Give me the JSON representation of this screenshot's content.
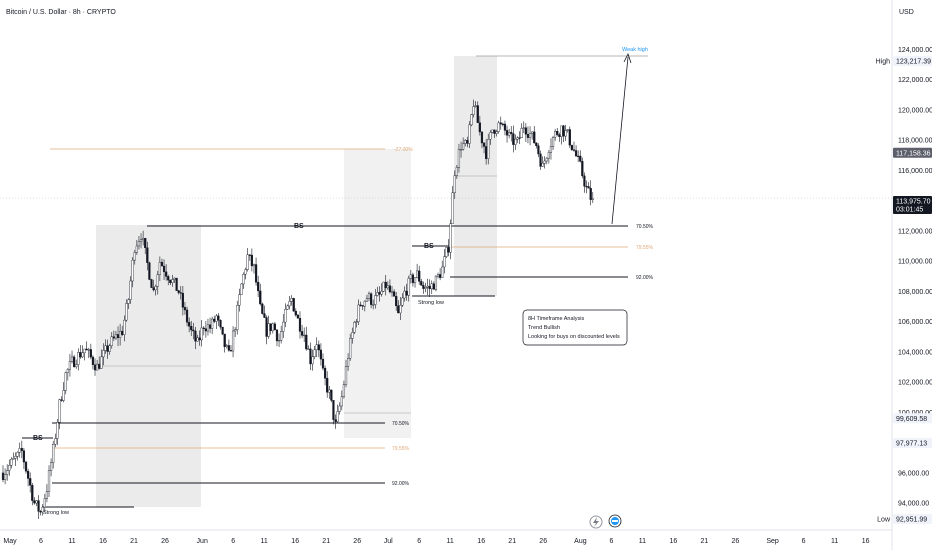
{
  "header": {
    "title": "Bitcoin / U.S. Dollar · 8h · CRYPTO",
    "currency": "USD"
  },
  "chart_data": {
    "type": "candlestick",
    "yaxis_ticks": [
      "124,000.00",
      "122,000.00",
      "120,000.00",
      "118,000.00",
      "116,000.00",
      "112,000.00",
      "110,000.00",
      "108,000.00",
      "106,000.00",
      "104,000.00",
      "102,000.00",
      "100,000.00",
      "96,000.00",
      "94,000.00",
      "90,000.00"
    ],
    "ytick_values": [
      124000,
      122000,
      120000,
      118000,
      116000,
      112000,
      110000,
      108000,
      106000,
      104000,
      102000,
      100000,
      96000,
      94000,
      90000
    ],
    "ylim": [
      91500,
      126200
    ],
    "xaxis_ticks": [
      {
        "label": "May",
        "pos": 0
      },
      {
        "label": "6",
        "pos": 5
      },
      {
        "label": "11",
        "pos": 10
      },
      {
        "label": "16",
        "pos": 15
      },
      {
        "label": "21",
        "pos": 20
      },
      {
        "label": "26",
        "pos": 25
      },
      {
        "label": "Jun",
        "pos": 31
      },
      {
        "label": "6",
        "pos": 36
      },
      {
        "label": "11",
        "pos": 41
      },
      {
        "label": "16",
        "pos": 46
      },
      {
        "label": "21",
        "pos": 51
      },
      {
        "label": "26",
        "pos": 56
      },
      {
        "label": "Jul",
        "pos": 61
      },
      {
        "label": "6",
        "pos": 66
      },
      {
        "label": "11",
        "pos": 71
      },
      {
        "label": "16",
        "pos": 76
      },
      {
        "label": "21",
        "pos": 81
      },
      {
        "label": "26",
        "pos": 86
      },
      {
        "label": "Aug",
        "pos": 92
      },
      {
        "label": "6",
        "pos": 97
      },
      {
        "label": "11",
        "pos": 102
      },
      {
        "label": "16",
        "pos": 107
      },
      {
        "label": "21",
        "pos": 112
      },
      {
        "label": "26",
        "pos": 117
      },
      {
        "label": "Sep",
        "pos": 123
      },
      {
        "label": "6",
        "pos": 128
      },
      {
        "label": "11",
        "pos": 133
      },
      {
        "label": "16",
        "pos": 138
      }
    ],
    "price_tags": [
      {
        "label": "High",
        "value": "123,217.39",
        "y": 123217.39,
        "style": "light"
      },
      {
        "label": "",
        "value": "117,158.36",
        "y": 117158.36,
        "style": "gray"
      },
      {
        "label": "",
        "value": "113,975.70",
        "sub": "03:01:45",
        "y": 113975.7,
        "style": "dark"
      },
      {
        "label": "",
        "value": "99,609.58",
        "y": 99609.58,
        "style": "light"
      },
      {
        "label": "",
        "value": "97,977.13",
        "y": 97977.13,
        "style": "light"
      },
      {
        "label": "Low",
        "value": "92,951.99",
        "y": 92951.99,
        "style": "light"
      }
    ],
    "key_points": [
      {
        "day": 0,
        "price": 96000
      },
      {
        "day": 3,
        "price": 97400
      },
      {
        "day": 5,
        "price": 94000
      },
      {
        "day": 6,
        "price": 93400
      },
      {
        "day": 7,
        "price": 95000
      },
      {
        "day": 8,
        "price": 97500
      },
      {
        "day": 9,
        "price": 100500
      },
      {
        "day": 10,
        "price": 102500
      },
      {
        "day": 11,
        "price": 103300
      },
      {
        "day": 13,
        "price": 104200
      },
      {
        "day": 15,
        "price": 103000
      },
      {
        "day": 17,
        "price": 104500
      },
      {
        "day": 19,
        "price": 105400
      },
      {
        "day": 20,
        "price": 107500
      },
      {
        "day": 21,
        "price": 111000
      },
      {
        "day": 22,
        "price": 111800
      },
      {
        "day": 23,
        "price": 109800
      },
      {
        "day": 24,
        "price": 108000
      },
      {
        "day": 25,
        "price": 110000
      },
      {
        "day": 26,
        "price": 109300
      },
      {
        "day": 28,
        "price": 108000
      },
      {
        "day": 29,
        "price": 106500
      },
      {
        "day": 30,
        "price": 105300
      },
      {
        "day": 31,
        "price": 104500
      },
      {
        "day": 32,
        "price": 105800
      },
      {
        "day": 33,
        "price": 105600
      },
      {
        "day": 34,
        "price": 106300
      },
      {
        "day": 35,
        "price": 104800
      },
      {
        "day": 36,
        "price": 103700
      },
      {
        "day": 37,
        "price": 105800
      },
      {
        "day": 38,
        "price": 108400
      },
      {
        "day": 39,
        "price": 110300
      },
      {
        "day": 40,
        "price": 109500
      },
      {
        "day": 41,
        "price": 106800
      },
      {
        "day": 42,
        "price": 105400
      },
      {
        "day": 43,
        "price": 105800
      },
      {
        "day": 44,
        "price": 104800
      },
      {
        "day": 45,
        "price": 106400
      },
      {
        "day": 46,
        "price": 107500
      },
      {
        "day": 47,
        "price": 106100
      },
      {
        "day": 48,
        "price": 105200
      },
      {
        "day": 49,
        "price": 103500
      },
      {
        "day": 50,
        "price": 104700
      },
      {
        "day": 51,
        "price": 102500
      },
      {
        "day": 52,
        "price": 101200
      },
      {
        "day": 53,
        "price": 99100
      },
      {
        "day": 54,
        "price": 101000
      },
      {
        "day": 55,
        "price": 103800
      },
      {
        "day": 56,
        "price": 105900
      },
      {
        "day": 57,
        "price": 107200
      },
      {
        "day": 58,
        "price": 107600
      },
      {
        "day": 59,
        "price": 107400
      },
      {
        "day": 60,
        "price": 107700
      },
      {
        "day": 61,
        "price": 108400
      },
      {
        "day": 62,
        "price": 107700
      },
      {
        "day": 63,
        "price": 106400
      },
      {
        "day": 64,
        "price": 107900
      },
      {
        "day": 65,
        "price": 108700
      },
      {
        "day": 66,
        "price": 109100
      },
      {
        "day": 67,
        "price": 108300
      },
      {
        "day": 68,
        "price": 108200
      },
      {
        "day": 69,
        "price": 108700
      },
      {
        "day": 70,
        "price": 109500
      },
      {
        "day": 71,
        "price": 111000
      },
      {
        "day": 72,
        "price": 116000
      },
      {
        "day": 73,
        "price": 117700
      },
      {
        "day": 74,
        "price": 117600
      },
      {
        "day": 75,
        "price": 120500
      },
      {
        "day": 76,
        "price": 118500
      },
      {
        "day": 77,
        "price": 117200
      },
      {
        "day": 78,
        "price": 118700
      },
      {
        "day": 79,
        "price": 119000
      },
      {
        "day": 80,
        "price": 118600
      },
      {
        "day": 81,
        "price": 118000
      },
      {
        "day": 82,
        "price": 117800
      },
      {
        "day": 83,
        "price": 119000
      },
      {
        "day": 84,
        "price": 118400
      },
      {
        "day": 85,
        "price": 117700
      },
      {
        "day": 86,
        "price": 116200
      },
      {
        "day": 87,
        "price": 117600
      },
      {
        "day": 88,
        "price": 118400
      },
      {
        "day": 89,
        "price": 118800
      },
      {
        "day": 90,
        "price": 118300
      },
      {
        "day": 91,
        "price": 117300
      },
      {
        "day": 92,
        "price": 116200
      },
      {
        "day": 93,
        "price": 114800
      },
      {
        "day": 94,
        "price": 113900
      }
    ],
    "annotations": {
      "bs_labels": [
        "BS",
        "BS",
        "BS"
      ],
      "strong_low_labels": [
        "Strong low",
        "Strong low"
      ],
      "levels_main": [
        {
          "label": "-27.00%",
          "y": 117200
        },
        {
          "label": "70.50%",
          "y": 112000
        },
        {
          "label": "79.55%",
          "y": 110800
        },
        {
          "label": "92.00%",
          "y": 108600
        }
      ],
      "levels_lower": [
        {
          "label": "70.50%",
          "y": 99000
        },
        {
          "label": "79.55%",
          "y": 97200
        },
        {
          "label": "92.00%",
          "y": 94600
        }
      ],
      "weak_high": "Weak high",
      "note_lines": [
        "8H Timeframe Analysis",
        "Trend Bullish",
        "Looking for buys on discounted levels"
      ]
    }
  },
  "colors": {
    "bg": "#ffffff",
    "candle": "#131722",
    "axis_text": "#131722",
    "zone": "#e4e4e4",
    "level_orange": "#e0a878",
    "level_dark": "#131722",
    "grid_sep": "#e0e3eb",
    "weak_high": "#2196f3"
  }
}
